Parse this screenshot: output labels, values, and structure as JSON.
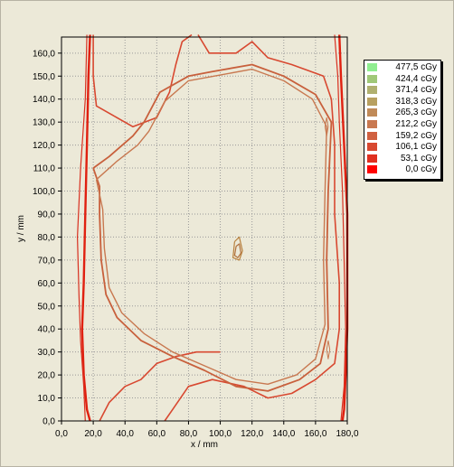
{
  "chart_data": {
    "type": "contour",
    "xlabel": "x / mm",
    "ylabel": "y / mm",
    "xlim": [
      0,
      180
    ],
    "ylim": [
      0,
      167
    ],
    "x_ticks": [
      "0,0",
      "20,0",
      "40,0",
      "60,0",
      "80,0",
      "100,0",
      "120,0",
      "140,0",
      "160,0",
      "180,0"
    ],
    "y_ticks": [
      "0,0",
      "10,0",
      "20,0",
      "30,0",
      "40,0",
      "50,0",
      "60,0",
      "70,0",
      "80,0",
      "90,0",
      "100,0",
      "110,0",
      "120,0",
      "130,0",
      "140,0",
      "150,0",
      "160,0"
    ],
    "grid": true,
    "legend_position": "right",
    "legend": [
      {
        "label": "477,5 cGy",
        "color": "#90ee90"
      },
      {
        "label": "424,4 cGy",
        "color": "#a0c878"
      },
      {
        "label": "371,4 cGy",
        "color": "#b0b070"
      },
      {
        "label": "318,3 cGy",
        "color": "#b8a060"
      },
      {
        "label": "265,3 cGy",
        "color": "#c08a58"
      },
      {
        "label": "212,2 cGy",
        "color": "#c87850"
      },
      {
        "label": "159,2 cGy",
        "color": "#d06040"
      },
      {
        "label": "106,1 cGy",
        "color": "#d84830"
      },
      {
        "label": "53,1 cGy",
        "color": "#e03020"
      },
      {
        "label": "0,0 cGy",
        "color": "#ff0000"
      }
    ],
    "contours": [
      {
        "level": "0,0 cGy",
        "color": "#e02010",
        "width": 2.4,
        "points": [
          [
            18,
            168
          ],
          [
            17,
            150
          ],
          [
            16,
            120
          ],
          [
            15,
            90
          ],
          [
            14,
            60
          ],
          [
            13,
            40
          ],
          [
            14,
            20
          ],
          [
            16,
            5
          ],
          [
            18,
            0
          ]
        ]
      },
      {
        "level": "0,0 cGy",
        "color": "#e02010",
        "width": 2.4,
        "points": [
          [
            175,
            168
          ],
          [
            176,
            150
          ],
          [
            178,
            120
          ],
          [
            180,
            90
          ],
          [
            180,
            60
          ],
          [
            180,
            40
          ],
          [
            179,
            20
          ],
          [
            178,
            5
          ],
          [
            177,
            0
          ]
        ]
      },
      {
        "level": "53,1 cGy",
        "color": "#d83020",
        "width": 1.2,
        "points": [
          [
            16,
            168
          ],
          [
            15,
            140
          ],
          [
            12,
            110
          ],
          [
            10,
            80
          ],
          [
            11,
            55
          ],
          [
            12,
            35
          ],
          [
            14,
            15
          ],
          [
            15,
            0
          ]
        ]
      },
      {
        "level": "53,1 cGy",
        "color": "#d83020",
        "width": 1.2,
        "points": [
          [
            172,
            168
          ],
          [
            174,
            150
          ],
          [
            175,
            130
          ],
          [
            177,
            100
          ],
          [
            178,
            70
          ],
          [
            179,
            40
          ],
          [
            178,
            15
          ],
          [
            176,
            0
          ]
        ]
      },
      {
        "level": "106,1 cGy",
        "color": "#d84830",
        "width": 1.6,
        "points": [
          [
            20,
            168
          ],
          [
            20,
            150
          ],
          [
            22,
            137
          ],
          [
            45,
            128
          ],
          [
            60,
            132
          ],
          [
            68,
            143
          ],
          [
            72,
            155
          ],
          [
            76,
            165
          ],
          [
            82,
            168
          ]
        ]
      },
      {
        "level": "106,1 cGy",
        "color": "#d84830",
        "width": 1.6,
        "points": [
          [
            86,
            168
          ],
          [
            93,
            160
          ],
          [
            110,
            160
          ],
          [
            120,
            165
          ],
          [
            130,
            158
          ],
          [
            145,
            155
          ],
          [
            165,
            150
          ],
          [
            170,
            140
          ],
          [
            172,
            120
          ],
          [
            172,
            90
          ],
          [
            175,
            60
          ],
          [
            175,
            40
          ],
          [
            172,
            25
          ],
          [
            160,
            18
          ],
          [
            145,
            12
          ],
          [
            130,
            10
          ],
          [
            115,
            15
          ],
          [
            95,
            18
          ],
          [
            80,
            15
          ],
          [
            70,
            5
          ],
          [
            65,
            0
          ]
        ]
      },
      {
        "level": "106,1 cGy",
        "color": "#d84830",
        "width": 1.6,
        "points": [
          [
            24,
            0
          ],
          [
            30,
            8
          ],
          [
            40,
            15
          ],
          [
            50,
            18
          ],
          [
            60,
            25
          ],
          [
            72,
            28
          ],
          [
            85,
            30
          ],
          [
            100,
            30
          ]
        ]
      },
      {
        "level": "212,2 cGy",
        "color": "#c8603c",
        "width": 1.8,
        "points": [
          [
            20,
            110
          ],
          [
            30,
            115
          ],
          [
            45,
            124
          ],
          [
            52,
            130
          ],
          [
            62,
            143
          ],
          [
            80,
            150
          ],
          [
            95,
            152
          ],
          [
            120,
            155
          ],
          [
            140,
            150
          ],
          [
            160,
            142
          ],
          [
            170,
            130
          ],
          [
            168,
            100
          ],
          [
            167,
            70
          ],
          [
            168,
            40
          ],
          [
            163,
            25
          ],
          [
            150,
            18
          ],
          [
            130,
            13
          ],
          [
            110,
            15
          ],
          [
            90,
            22
          ],
          [
            70,
            28
          ],
          [
            50,
            35
          ],
          [
            35,
            45
          ],
          [
            28,
            55
          ],
          [
            25,
            70
          ],
          [
            24,
            90
          ],
          [
            24,
            102
          ],
          [
            20,
            110
          ]
        ]
      },
      {
        "level": "265,3 cGy",
        "color": "#c87850",
        "width": 1.4,
        "points": [
          [
            22,
            105
          ],
          [
            35,
            113
          ],
          [
            48,
            120
          ],
          [
            55,
            126
          ],
          [
            65,
            139
          ],
          [
            80,
            148
          ],
          [
            96,
            150
          ],
          [
            120,
            153
          ],
          [
            140,
            148
          ],
          [
            158,
            140
          ],
          [
            167,
            128
          ],
          [
            166,
            100
          ],
          [
            165,
            70
          ],
          [
            166,
            42
          ],
          [
            160,
            27
          ],
          [
            148,
            20
          ],
          [
            130,
            16
          ],
          [
            110,
            18
          ],
          [
            90,
            24
          ],
          [
            70,
            30
          ],
          [
            52,
            38
          ],
          [
            38,
            47
          ],
          [
            30,
            58
          ],
          [
            27,
            75
          ],
          [
            26,
            92
          ],
          [
            22,
            105
          ]
        ]
      },
      {
        "level": "318,3 cGy",
        "color": "#b8803c",
        "width": 1.2,
        "points": [
          [
            109,
            78
          ],
          [
            112,
            80
          ],
          [
            114,
            74
          ],
          [
            112,
            70
          ],
          [
            108,
            71
          ],
          [
            109,
            78
          ]
        ]
      },
      {
        "level": "371,4 cGy",
        "color": "#b0703c",
        "width": 1.2,
        "points": [
          [
            110,
            76
          ],
          [
            112,
            77
          ],
          [
            113,
            73
          ],
          [
            111,
            71
          ],
          [
            109,
            72
          ],
          [
            110,
            76
          ]
        ]
      },
      {
        "level": "265,3 cGy",
        "color": "#c87850",
        "width": 1,
        "points": [
          [
            167,
            132
          ],
          [
            168,
            128
          ],
          [
            167,
            124
          ],
          [
            166,
            128
          ],
          [
            167,
            132
          ]
        ]
      },
      {
        "level": "265,3 cGy",
        "color": "#c87850",
        "width": 1,
        "points": [
          [
            168,
            35
          ],
          [
            169,
            31
          ],
          [
            168,
            27
          ],
          [
            167,
            31
          ],
          [
            168,
            35
          ]
        ]
      }
    ]
  }
}
